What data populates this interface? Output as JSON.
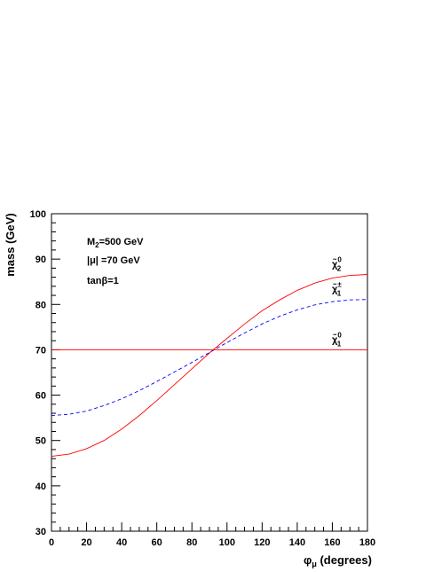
{
  "chart_data": {
    "type": "line",
    "xlabel": "φμ (degrees)",
    "xlabel_main": "φ",
    "xlabel_sub": "μ",
    "xlabel_tail": " (degrees)",
    "ylabel": "mass (GeV)",
    "xlim": [
      0,
      180
    ],
    "ylim": [
      30,
      100
    ],
    "xticks": [
      0,
      20,
      40,
      60,
      80,
      100,
      120,
      140,
      160,
      180
    ],
    "yticks": [
      30,
      40,
      50,
      60,
      70,
      80,
      90,
      100
    ],
    "grid": false,
    "annotations": [
      {
        "id": "m2",
        "main": "M",
        "sub": "2",
        "tail": "=500 GeV"
      },
      {
        "id": "mu",
        "main": "|μ| =70 GeV",
        "sub": "",
        "tail": ""
      },
      {
        "id": "tanb",
        "main": "tanβ=1",
        "sub": "",
        "tail": ""
      }
    ],
    "series": [
      {
        "label_main": "χ̃",
        "label_sup": "0",
        "label_sub": "2",
        "color": "#ff0000",
        "dash": "solid",
        "x": [
          0,
          10,
          20,
          30,
          40,
          50,
          60,
          70,
          80,
          90,
          100,
          110,
          120,
          130,
          140,
          150,
          160,
          170,
          180
        ],
        "y": [
          46.5,
          47.0,
          48.2,
          50.0,
          52.5,
          55.5,
          58.8,
          62.3,
          65.8,
          69.3,
          72.5,
          75.7,
          78.6,
          81.0,
          83.1,
          84.7,
          85.8,
          86.4,
          86.6
        ]
      },
      {
        "label_main": "χ̃",
        "label_sup": "±",
        "label_sub": "1",
        "color": "#0000ff",
        "dash": "dashed",
        "x": [
          0,
          10,
          20,
          30,
          40,
          50,
          60,
          70,
          80,
          90,
          100,
          110,
          120,
          130,
          140,
          150,
          160,
          170,
          180
        ],
        "y": [
          55.5,
          55.8,
          56.5,
          57.7,
          59.2,
          61.0,
          63.0,
          65.1,
          67.2,
          69.4,
          71.6,
          73.7,
          75.7,
          77.4,
          78.8,
          79.9,
          80.6,
          81.0,
          81.1
        ]
      },
      {
        "label_main": "χ̃",
        "label_sup": "0",
        "label_sub": "1",
        "color": "#ff0000",
        "dash": "solid",
        "x": [
          0,
          10,
          20,
          30,
          40,
          50,
          60,
          70,
          80,
          90,
          100,
          110,
          120,
          130,
          140,
          150,
          160,
          170,
          180
        ],
        "y": [
          70,
          70,
          70,
          70,
          70,
          70,
          70,
          70,
          70,
          70,
          70,
          70,
          70,
          70,
          70,
          70,
          70,
          70,
          70
        ]
      }
    ]
  }
}
